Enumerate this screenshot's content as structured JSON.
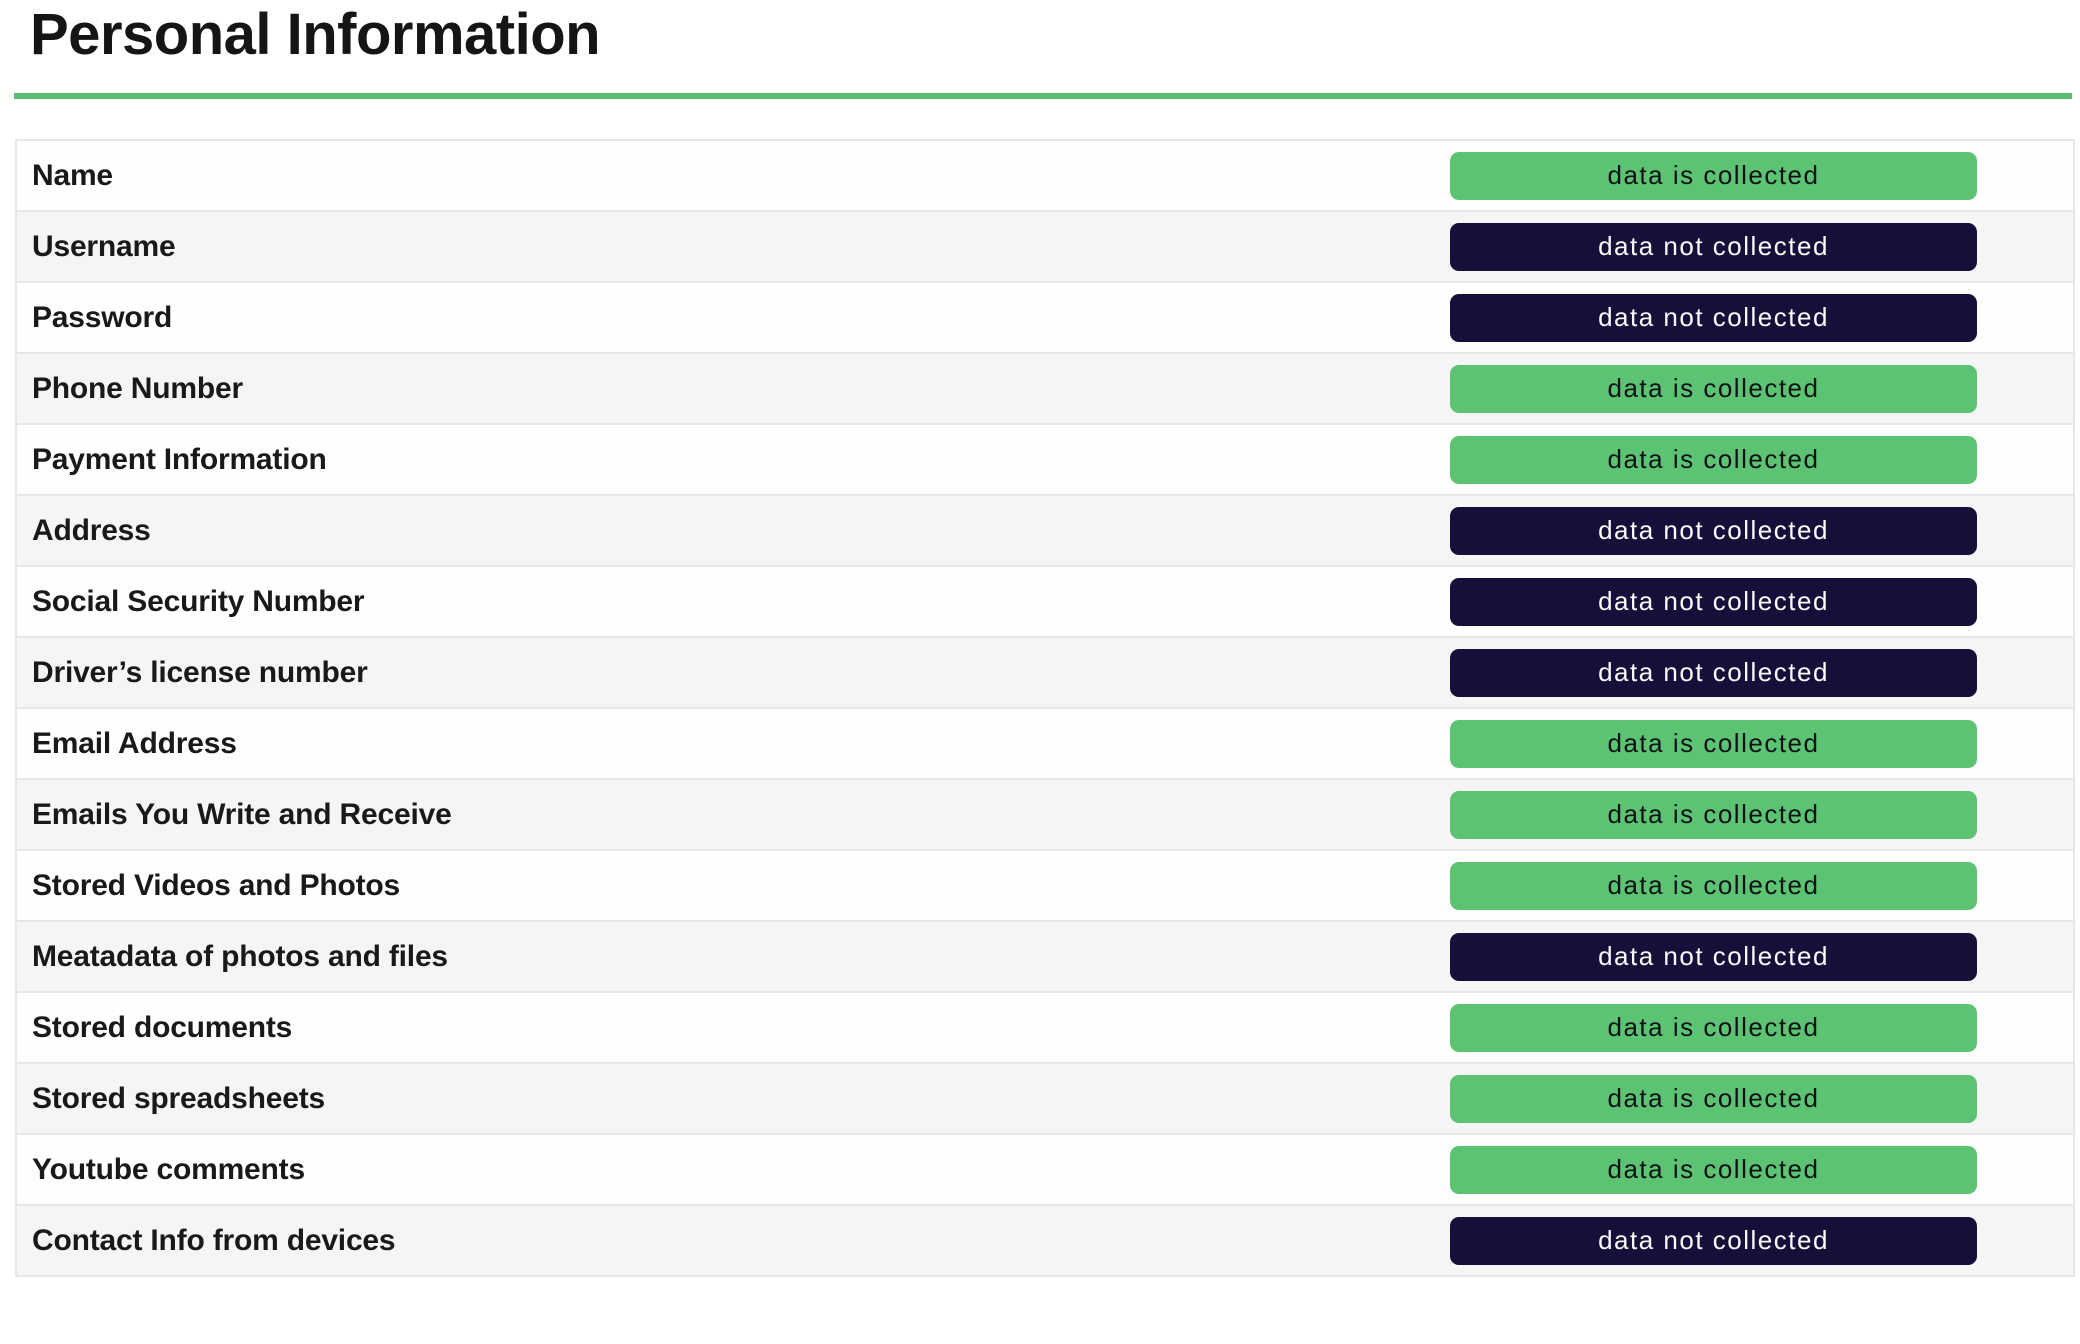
{
  "page": {
    "title": "Personal Information"
  },
  "badges": {
    "collected_label": "data is collected",
    "not_collected_label": "data not collected"
  },
  "colors": {
    "accent_green": "#5abf6d",
    "badge_green": "#5cc373",
    "badge_navy": "#15103a",
    "row_alt_gray": "#f5f5f6",
    "row_border": "#e7e7e8"
  },
  "table": {
    "rows": [
      {
        "label": "Name",
        "status": "collected"
      },
      {
        "label": "Username",
        "status": "not_collected"
      },
      {
        "label": "Password",
        "status": "not_collected"
      },
      {
        "label": "Phone Number",
        "status": "collected"
      },
      {
        "label": "Payment Information",
        "status": "collected"
      },
      {
        "label": "Address",
        "status": "not_collected"
      },
      {
        "label": "Social Security Number",
        "status": "not_collected"
      },
      {
        "label": "Driver’s license number",
        "status": "not_collected"
      },
      {
        "label": "Email Address",
        "status": "collected"
      },
      {
        "label": "Emails You Write and Receive",
        "status": "collected"
      },
      {
        "label": "Stored Videos and Photos",
        "status": "collected"
      },
      {
        "label": "Meatadata of photos and files",
        "status": "not_collected"
      },
      {
        "label": "Stored documents",
        "status": "collected"
      },
      {
        "label": "Stored spreadsheets",
        "status": "collected"
      },
      {
        "label": "Youtube comments",
        "status": "collected"
      },
      {
        "label": "Contact Info from devices",
        "status": "not_collected"
      }
    ]
  }
}
